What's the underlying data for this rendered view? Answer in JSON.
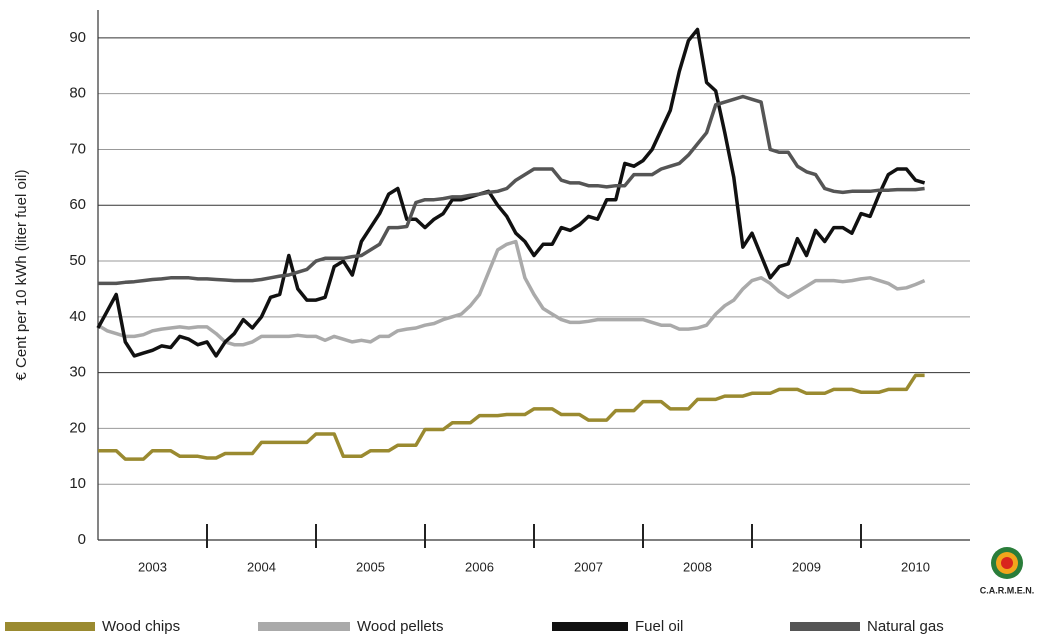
{
  "chart_data": {
    "type": "line",
    "y_label": "€ Cent per 10 kWh (liter fuel oil)",
    "logo": "C.A.R.M.E.N.",
    "x": [
      2003,
      2003.0833,
      2003.1667,
      2003.25,
      2003.3333,
      2003.4167,
      2003.5,
      2003.5833,
      2003.6667,
      2003.75,
      2003.8333,
      2003.9167,
      2004,
      2004.0833,
      2004.1667,
      2004.25,
      2004.3333,
      2004.4167,
      2004.5,
      2004.5833,
      2004.6667,
      2004.75,
      2004.8333,
      2004.9167,
      2005,
      2005.0833,
      2005.1667,
      2005.25,
      2005.3333,
      2005.4167,
      2005.5,
      2005.5833,
      2005.6667,
      2005.75,
      2005.8333,
      2005.9167,
      2006,
      2006.0833,
      2006.1667,
      2006.25,
      2006.3333,
      2006.4167,
      2006.5,
      2006.5833,
      2006.6667,
      2006.75,
      2006.8333,
      2006.9167,
      2007,
      2007.0833,
      2007.1667,
      2007.25,
      2007.3333,
      2007.4167,
      2007.5,
      2007.5833,
      2007.6667,
      2007.75,
      2007.8333,
      2007.9167,
      2008,
      2008.0833,
      2008.1667,
      2008.25,
      2008.3333,
      2008.4167,
      2008.5,
      2008.5833,
      2008.6667,
      2008.75,
      2008.8333,
      2008.9167,
      2009,
      2009.0833,
      2009.1667,
      2009.25,
      2009.3333,
      2009.4167,
      2009.5,
      2009.5833,
      2009.6667,
      2009.75,
      2009.8333,
      2009.9167,
      2010,
      2010.0833,
      2010.1667,
      2010.25,
      2010.3333,
      2010.4167,
      2010.5,
      2010.5833
    ],
    "xlim": [
      2003,
      2011
    ],
    "xticks": [
      {
        "value": 2003.5,
        "label": "2003"
      },
      {
        "value": 2004.5,
        "label": "2004"
      },
      {
        "value": 2005.5,
        "label": "2005"
      },
      {
        "value": 2006.5,
        "label": "2006"
      },
      {
        "value": 2007.5,
        "label": "2007"
      },
      {
        "value": 2008.5,
        "label": "2008"
      },
      {
        "value": 2009.5,
        "label": "2009"
      },
      {
        "value": 2010.5,
        "label": "2010"
      }
    ],
    "ylim": [
      0,
      95
    ],
    "yticks": [
      0,
      10,
      20,
      30,
      40,
      50,
      60,
      70,
      80,
      90
    ],
    "grid": true,
    "legend": "bottom",
    "series": [
      {
        "name": "Wood chips",
        "color": "#9a8a30",
        "values": [
          16,
          16,
          16,
          14.5,
          14.5,
          14.5,
          16,
          16,
          16,
          15,
          15,
          15,
          14.7,
          14.7,
          15.5,
          15.5,
          15.5,
          15.5,
          17.5,
          17.5,
          17.5,
          17.5,
          17.5,
          17.5,
          19,
          19,
          19,
          15,
          15,
          15,
          16,
          16,
          16,
          17,
          17,
          17,
          19.8,
          19.8,
          19.8,
          21,
          21,
          21,
          22.3,
          22.3,
          22.3,
          22.5,
          22.5,
          22.5,
          23.5,
          23.5,
          23.5,
          22.5,
          22.5,
          22.5,
          21.5,
          21.5,
          21.5,
          23.2,
          23.2,
          23.2,
          24.8,
          24.8,
          24.8,
          23.5,
          23.5,
          23.5,
          25.2,
          25.2,
          25.2,
          25.8,
          25.8,
          25.8,
          26.3,
          26.3,
          26.3,
          27,
          27,
          27,
          26.3,
          26.3,
          26.3,
          27,
          27,
          27,
          26.5,
          26.5,
          26.5,
          27,
          27,
          27,
          29.5,
          29.5
        ]
      },
      {
        "name": "Wood pellets",
        "color": "#aaaaaa",
        "values": [
          38.5,
          37.5,
          37,
          36.5,
          36.5,
          36.8,
          37.5,
          37.8,
          38,
          38.2,
          38,
          38.2,
          38.2,
          37,
          35.5,
          35,
          35,
          35.5,
          36.5,
          36.5,
          36.5,
          36.5,
          36.7,
          36.5,
          36.5,
          35.8,
          36.5,
          36,
          35.5,
          35.8,
          35.5,
          36.5,
          36.5,
          37.5,
          37.8,
          38,
          38.5,
          38.8,
          39.5,
          40,
          40.5,
          42,
          44,
          48,
          52,
          53,
          53.5,
          47,
          44,
          41.5,
          40.5,
          39.5,
          39,
          39,
          39.2,
          39.5,
          39.5,
          39.5,
          39.5,
          39.5,
          39.5,
          39,
          38.5,
          38.5,
          37.8,
          37.8,
          38,
          38.5,
          40.5,
          42,
          43,
          45,
          46.5,
          47,
          46,
          44.5,
          43.5,
          44.5,
          45.5,
          46.5,
          46.5,
          46.5,
          46.3,
          46.5,
          46.8,
          47,
          46.5,
          46,
          45,
          45.2,
          45.8,
          46.5
        ]
      },
      {
        "name": "Fuel oil",
        "color": "#111111",
        "values": [
          38,
          41,
          44,
          35.5,
          33,
          33.5,
          34,
          34.8,
          34.5,
          36.5,
          36,
          35,
          35.5,
          33,
          35.5,
          37,
          39.5,
          38,
          40,
          43.5,
          44,
          51,
          45,
          43,
          43,
          43.5,
          49,
          50,
          47.5,
          53.5,
          56,
          58.5,
          62,
          63,
          57.5,
          57.5,
          56,
          57.5,
          58.5,
          61,
          61,
          61.5,
          62,
          62.5,
          60,
          58,
          55,
          53.5,
          51,
          53,
          53,
          56,
          55.5,
          56.5,
          58,
          57.5,
          61,
          61,
          67.5,
          67,
          68,
          70,
          73.5,
          77,
          84,
          89.5,
          91.5,
          82,
          80.5,
          73,
          65,
          52.5,
          55,
          51,
          47,
          49,
          49.5,
          54,
          51,
          55.5,
          53.5,
          56,
          56,
          55,
          58.5,
          58,
          62,
          65.5,
          66.5,
          66.5,
          64.5,
          64
        ]
      },
      {
        "name": "Natural gas",
        "color": "#555555",
        "values": [
          46,
          46,
          46,
          46.2,
          46.3,
          46.5,
          46.7,
          46.8,
          47,
          47,
          47,
          46.8,
          46.8,
          46.7,
          46.6,
          46.5,
          46.5,
          46.5,
          46.7,
          47,
          47.3,
          47.5,
          48,
          48.5,
          50,
          50.5,
          50.5,
          50.5,
          50.8,
          51,
          52,
          53,
          56,
          56,
          56.2,
          60.5,
          61,
          61,
          61.2,
          61.5,
          61.5,
          61.8,
          62,
          62.3,
          62.5,
          63,
          64.5,
          65.5,
          66.5,
          66.5,
          66.5,
          64.5,
          64,
          64,
          63.5,
          63.5,
          63.3,
          63.5,
          63.5,
          65.5,
          65.5,
          65.5,
          66.5,
          67,
          67.5,
          69,
          71,
          73,
          78,
          78.5,
          79,
          79.5,
          79,
          78.5,
          70,
          69.5,
          69.5,
          67,
          66,
          65.5,
          63,
          62.5,
          62.3,
          62.5,
          62.5,
          62.5,
          62.7,
          62.7,
          62.8,
          62.8,
          62.8,
          63
        ]
      }
    ]
  }
}
